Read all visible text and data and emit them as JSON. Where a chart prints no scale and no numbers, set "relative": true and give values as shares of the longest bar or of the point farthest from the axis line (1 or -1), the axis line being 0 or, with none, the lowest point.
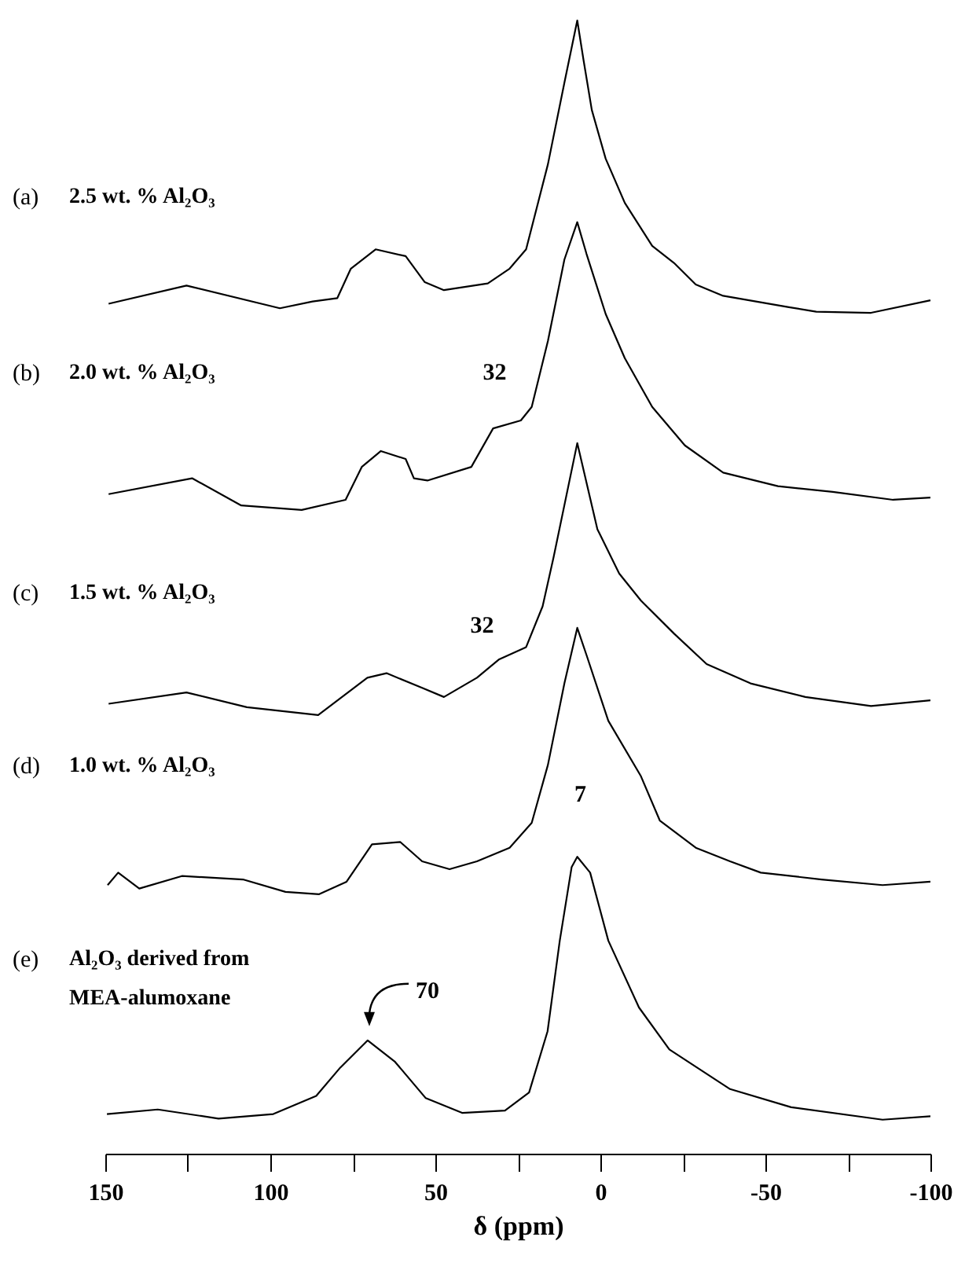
{
  "chart_data": {
    "type": "line",
    "xlabel": "δ (ppm)",
    "relative": true,
    "grid": false,
    "marker": "none",
    "tick_labels": "x",
    "xlim": [
      150,
      -100
    ],
    "xticks": [
      150,
      {
        "value": 125,
        "label": null
      },
      100,
      {
        "value": 75,
        "label": null
      },
      50,
      {
        "value": 25,
        "label": null
      },
      0,
      {
        "value": -25,
        "label": null
      },
      -50,
      {
        "value": -75,
        "label": null
      },
      -100
    ],
    "series": [
      {
        "name": "(a) 2.5 wt. % Al₂O₃",
        "color": "#000000",
        "x": [
          149,
          125.4,
          97.1,
          87.2,
          79.7,
          75.6,
          68.1,
          59.0,
          53.2,
          47.4,
          34.1,
          27.5,
          22.5,
          15.9,
          10.9,
          7,
          5.1,
          2.6,
          -1.6,
          -7.4,
          -15.7,
          -22.3,
          -28.9,
          -37.2,
          -57.1,
          -65.4,
          -82.0,
          -100
        ],
        "values": [
          0.75,
          0.766,
          0.746,
          0.752,
          0.755,
          0.781,
          0.798,
          0.792,
          0.769,
          0.762,
          0.768,
          0.781,
          0.798,
          0.873,
          0.945,
          1,
          0.965,
          0.921,
          0.878,
          0.839,
          0.801,
          0.786,
          0.767,
          0.757,
          0.747,
          0.743,
          0.742,
          0.753
        ]
      },
      {
        "name": "(b) 2.0 wt. % Al₂O₃",
        "color": "#000000",
        "x": [
          149,
          123.7,
          108.8,
          90.5,
          77.2,
          72.3,
          66.5,
          59.0,
          56.5,
          52.4,
          39.1,
          32.5,
          24.1,
          20.8,
          15.9,
          10.9,
          7,
          4.2,
          -1.6,
          -7.4,
          -15.7,
          -25.6,
          -37.2,
          -53.8,
          -70.4,
          -88.7,
          -100
        ],
        "values": [
          0.582,
          0.596,
          0.572,
          0.568,
          0.577,
          0.606,
          0.62,
          0.613,
          0.596,
          0.594,
          0.606,
          0.64,
          0.647,
          0.659,
          0.717,
          0.789,
          0.822,
          0.794,
          0.741,
          0.702,
          0.659,
          0.625,
          0.601,
          0.589,
          0.584,
          0.577,
          0.579
        ]
      },
      {
        "name": "(c) 1.5 wt. % Al₂O₃",
        "color": "#000000",
        "x": [
          149,
          125.4,
          107.1,
          85.5,
          70.6,
          64.8,
          54.0,
          47.4,
          37.4,
          30.8,
          22.5,
          17.5,
          14.2,
          7,
          0.9,
          -5.7,
          -12.3,
          -22.3,
          -32.2,
          -45.5,
          -62.1,
          -82.0,
          -100
        ],
        "values": [
          0.397,
          0.407,
          0.394,
          0.387,
          0.42,
          0.424,
          0.411,
          0.403,
          0.42,
          0.436,
          0.447,
          0.483,
          0.526,
          0.627,
          0.551,
          0.512,
          0.488,
          0.459,
          0.432,
          0.415,
          0.403,
          0.395,
          0.4
        ]
      },
      {
        "name": "(d) 1.0 wt. % Al₂O₃",
        "color": "#000000",
        "x": [
          149.3,
          146.1,
          139.7,
          126.8,
          108.3,
          95.4,
          85.2,
          76.9,
          69.2,
          60.6,
          54.0,
          45.7,
          37.4,
          27.5,
          20.8,
          15.9,
          10.9,
          7,
          4.2,
          -2.4,
          -12.3,
          -18.0,
          -28.9,
          -39.3,
          -48.6,
          -67.0,
          -85.5,
          -100
        ],
        "values": [
          0.237,
          0.248,
          0.234,
          0.245,
          0.242,
          0.231,
          0.229,
          0.24,
          0.273,
          0.275,
          0.258,
          0.251,
          0.258,
          0.27,
          0.292,
          0.343,
          0.415,
          0.464,
          0.44,
          0.382,
          0.333,
          0.294,
          0.27,
          0.258,
          0.248,
          0.242,
          0.237,
          0.24
        ]
      },
      {
        "name": "(e) Al₂O₃ derived from MEA-alumoxane",
        "color": "#000000",
        "x": [
          149.5,
          134.1,
          115.7,
          99.1,
          86.1,
          78.8,
          70.5,
          62.2,
          52.9,
          41.9,
          28.9,
          21.6,
          16.0,
          12.3,
          8.7,
          7,
          3.1,
          -2.4,
          -11.7,
          -20.9,
          -39.3,
          -57.8,
          -85.5,
          -100
        ],
        "values": [
          0.035,
          0.039,
          0.031,
          0.035,
          0.051,
          0.076,
          0.1,
          0.081,
          0.049,
          0.036,
          0.038,
          0.054,
          0.108,
          0.188,
          0.253,
          0.262,
          0.248,
          0.188,
          0.129,
          0.092,
          0.057,
          0.041,
          0.03,
          0.033
        ]
      }
    ],
    "annotations": [
      {
        "text": "32",
        "x": 32,
        "y": 0.647
      },
      {
        "text": "32",
        "x": 32,
        "y": 0.436
      },
      {
        "text": "7",
        "x": 7,
        "y": 0.262
      },
      {
        "text": "70",
        "x": 70,
        "y": 0.1
      }
    ]
  }
}
